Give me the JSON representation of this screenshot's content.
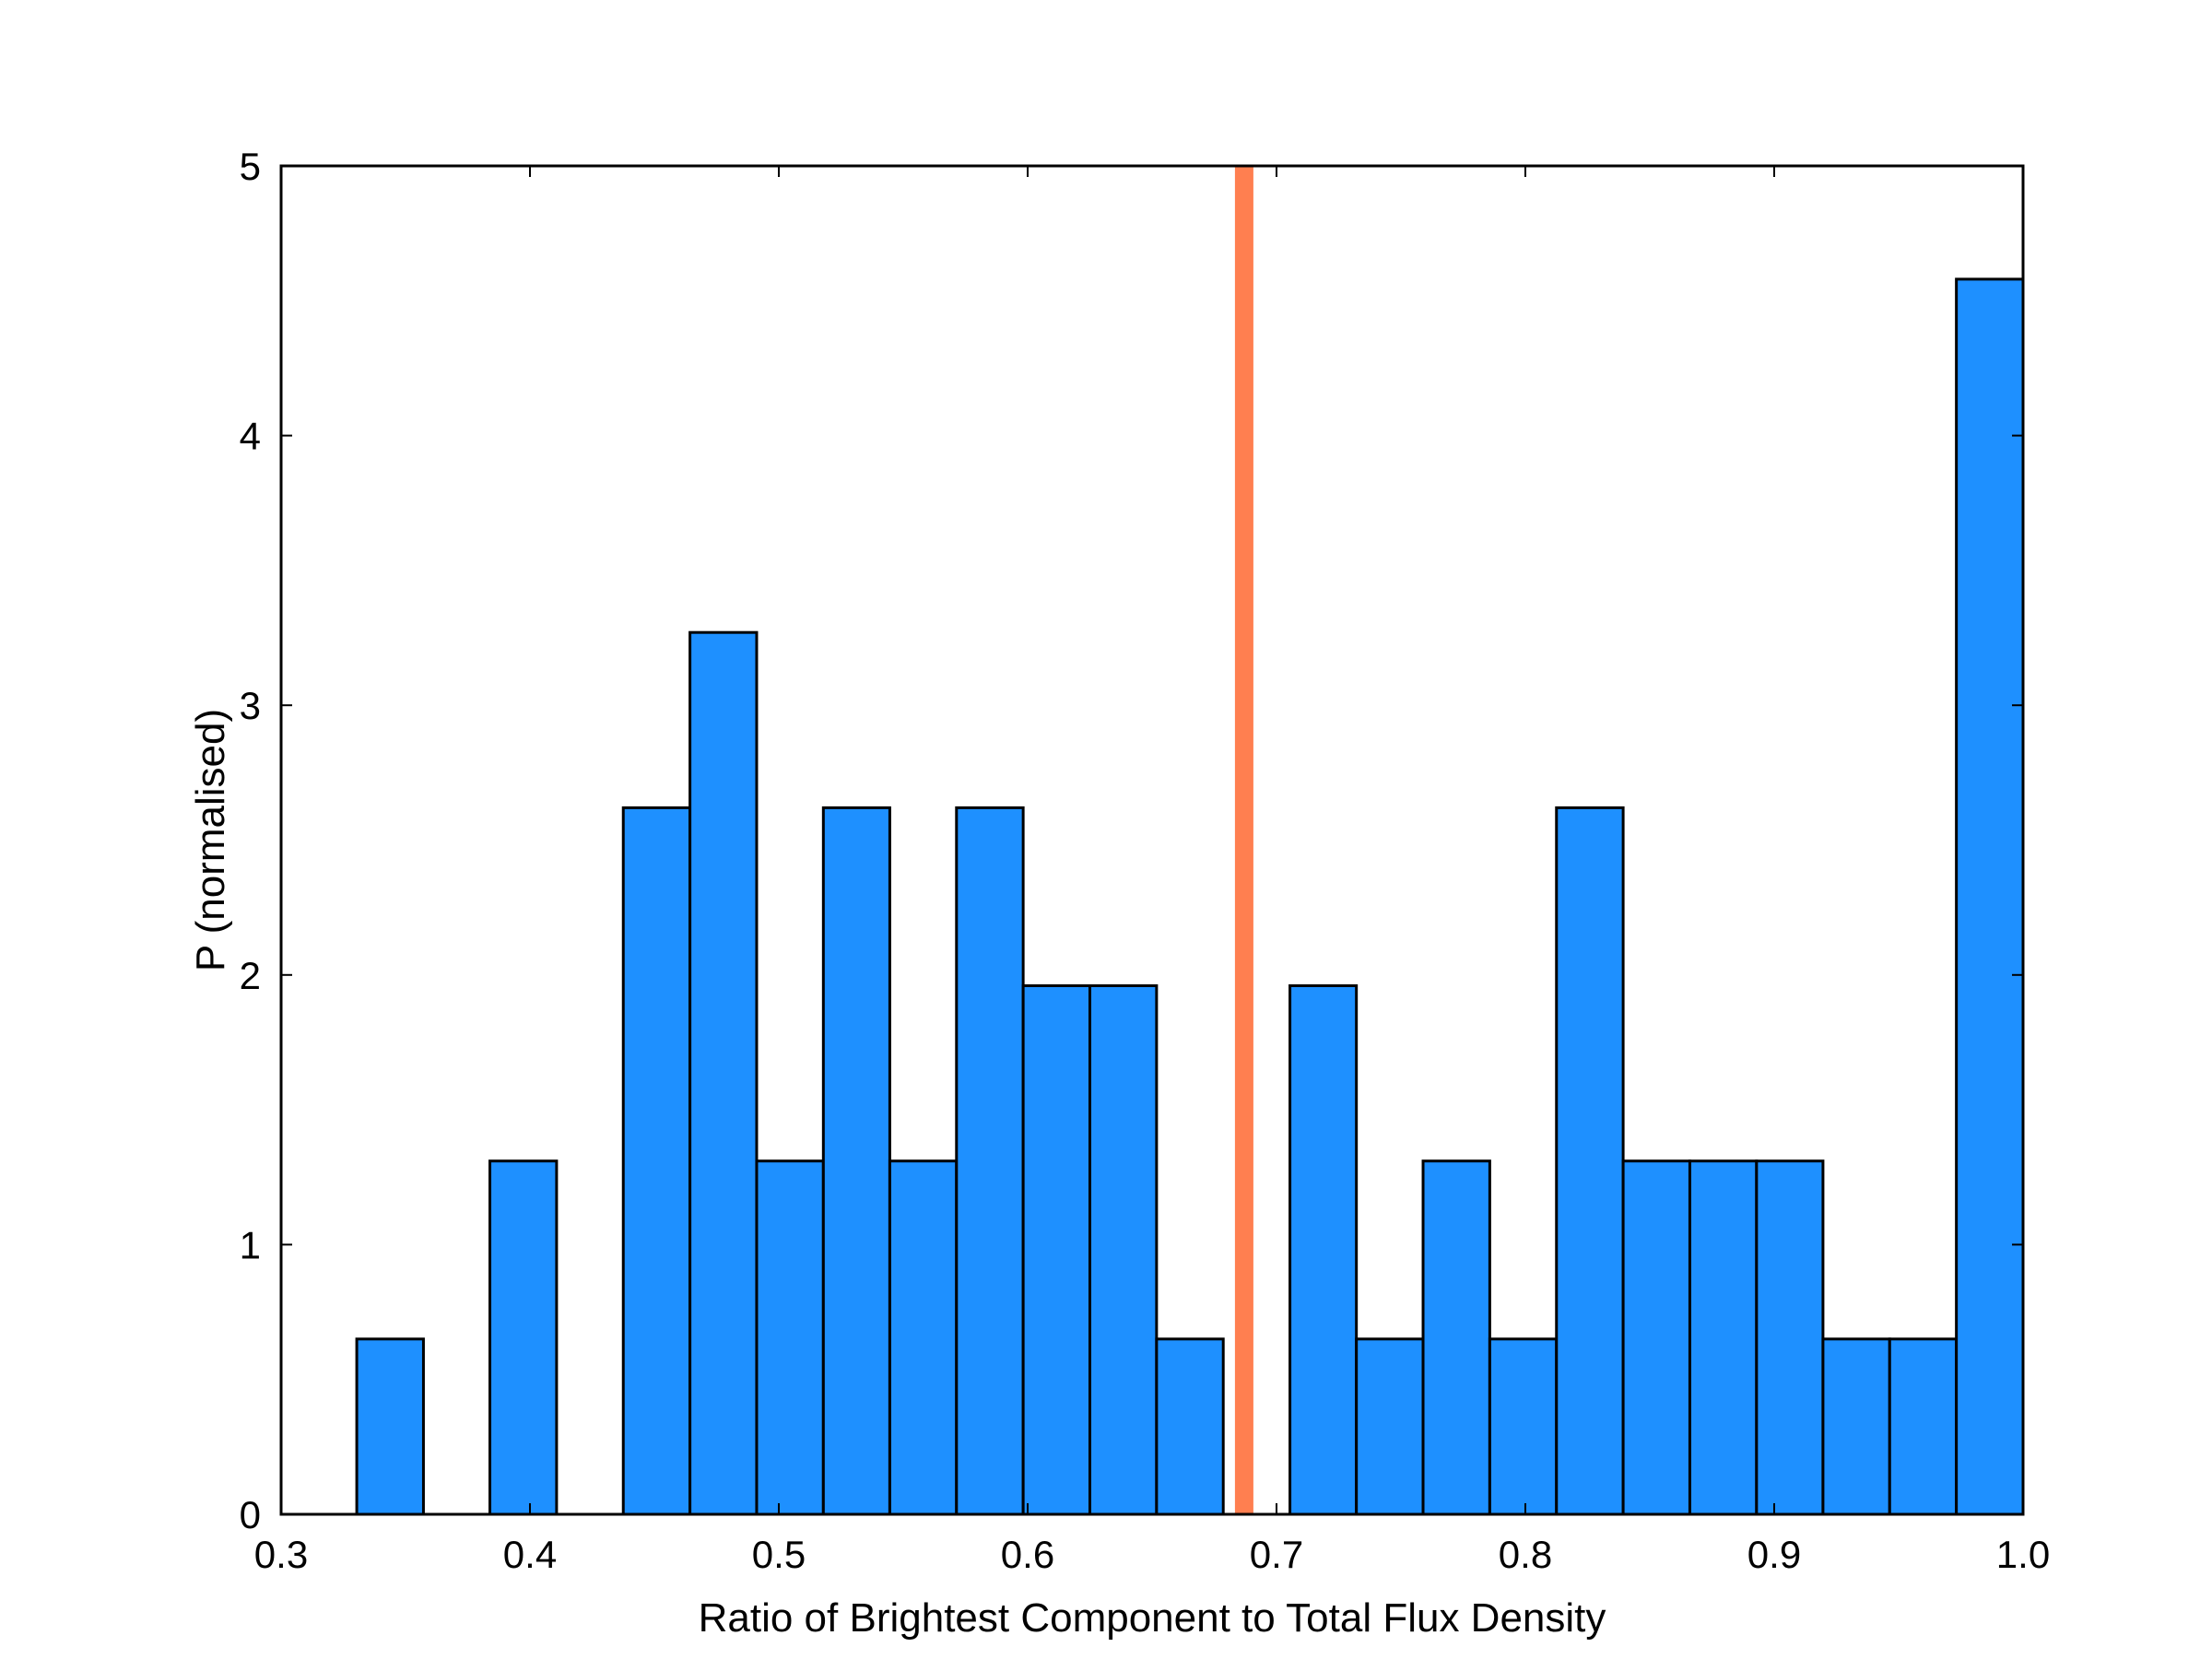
{
  "chart_data": {
    "type": "bar",
    "subtype": "histogram",
    "title": "",
    "xlabel": "Ratio of Brightest Component to Total Flux Density",
    "ylabel": "P (normalised)",
    "xlim": [
      0.3,
      1.0
    ],
    "ylim": [
      0,
      5
    ],
    "xticks": [
      0.3,
      0.4,
      0.5,
      0.6,
      0.7,
      0.8,
      0.9,
      1.0
    ],
    "xtick_labels": [
      "0.3",
      "0.4",
      "0.5",
      "0.6",
      "0.7",
      "0.8",
      "0.9",
      "1.0"
    ],
    "yticks": [
      0,
      1,
      2,
      3,
      4,
      5
    ],
    "ytick_labels": [
      "0",
      "1",
      "2",
      "3",
      "4",
      "5"
    ],
    "bar_color": "#1e90ff",
    "bar_edge_color": "#000000",
    "bins": [
      {
        "x0": 0.3304,
        "x1": 0.3572,
        "value": 0.65
      },
      {
        "x0": 0.3839,
        "x1": 0.4107,
        "value": 1.31
      },
      {
        "x0": 0.4375,
        "x1": 0.4643,
        "value": 2.62
      },
      {
        "x0": 0.4643,
        "x1": 0.4911,
        "value": 3.27
      },
      {
        "x0": 0.4911,
        "x1": 0.5179,
        "value": 1.31
      },
      {
        "x0": 0.5179,
        "x1": 0.5446,
        "value": 2.62
      },
      {
        "x0": 0.5446,
        "x1": 0.5714,
        "value": 1.31
      },
      {
        "x0": 0.5714,
        "x1": 0.5982,
        "value": 2.62
      },
      {
        "x0": 0.5982,
        "x1": 0.625,
        "value": 1.96
      },
      {
        "x0": 0.625,
        "x1": 0.6518,
        "value": 1.96
      },
      {
        "x0": 0.6518,
        "x1": 0.6786,
        "value": 0.65
      },
      {
        "x0": 0.7054,
        "x1": 0.7321,
        "value": 1.96
      },
      {
        "x0": 0.7321,
        "x1": 0.7589,
        "value": 0.65
      },
      {
        "x0": 0.7589,
        "x1": 0.7857,
        "value": 1.31
      },
      {
        "x0": 0.7857,
        "x1": 0.8125,
        "value": 0.65
      },
      {
        "x0": 0.8125,
        "x1": 0.8393,
        "value": 2.62
      },
      {
        "x0": 0.8393,
        "x1": 0.8661,
        "value": 1.31
      },
      {
        "x0": 0.8661,
        "x1": 0.8929,
        "value": 1.31
      },
      {
        "x0": 0.8929,
        "x1": 0.9196,
        "value": 1.31
      },
      {
        "x0": 0.9196,
        "x1": 0.9464,
        "value": 0.65
      },
      {
        "x0": 0.9464,
        "x1": 0.9732,
        "value": 0.65
      },
      {
        "x0": 0.9732,
        "x1": 1.0,
        "value": 4.58
      }
    ],
    "vertical_line": {
      "x": 0.687,
      "color": "#ff7f50"
    }
  }
}
